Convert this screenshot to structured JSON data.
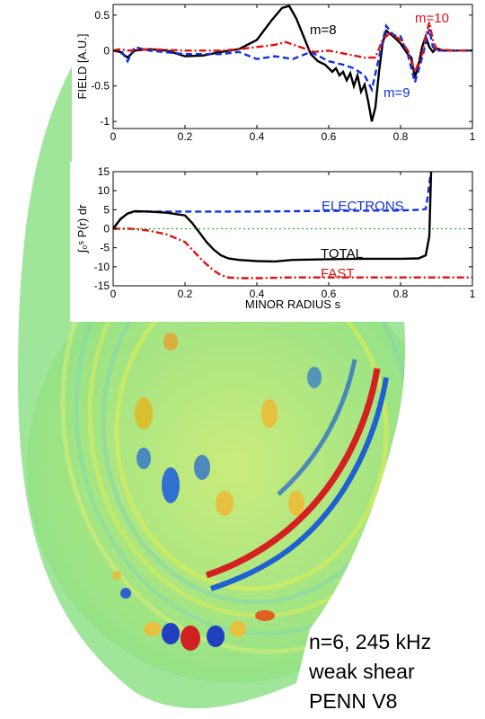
{
  "figure": {
    "caption_lines": [
      "n=6, 245 kHz",
      "weak shear",
      "PENN V8"
    ]
  },
  "chart_data": [
    {
      "type": "line",
      "title": "",
      "xlabel": "",
      "ylabel": "FIELD [A.U.]",
      "xlim": [
        0,
        1
      ],
      "ylim": [
        -1.1,
        0.65
      ],
      "xticks": [
        "0",
        "0.2",
        "0.4",
        "0.6",
        "0.8",
        "1"
      ],
      "yticks": [
        "0.5",
        "0",
        "-0.5",
        "-1"
      ],
      "grid": false,
      "series": [
        {
          "name": "m=8",
          "color": "#000000",
          "dash": "solid",
          "x": [
            0.0,
            0.02,
            0.04,
            0.06,
            0.1,
            0.15,
            0.2,
            0.25,
            0.3,
            0.35,
            0.4,
            0.44,
            0.47,
            0.49,
            0.51,
            0.53,
            0.55,
            0.57,
            0.59,
            0.61,
            0.62,
            0.63,
            0.64,
            0.65,
            0.66,
            0.67,
            0.68,
            0.69,
            0.7,
            0.71,
            0.72,
            0.73,
            0.74,
            0.75,
            0.76,
            0.78,
            0.8,
            0.82,
            0.83,
            0.84,
            0.85,
            0.86,
            0.87,
            0.88,
            0.89,
            0.9,
            0.92,
            0.95,
            1.0
          ],
          "y": [
            0.0,
            -0.02,
            -0.1,
            0.0,
            0.02,
            0.0,
            -0.08,
            -0.07,
            -0.02,
            0.02,
            0.15,
            0.42,
            0.6,
            0.63,
            0.45,
            0.2,
            -0.05,
            -0.15,
            -0.2,
            -0.3,
            -0.25,
            -0.35,
            -0.3,
            -0.42,
            -0.32,
            -0.5,
            -0.35,
            -0.58,
            -0.48,
            -0.72,
            -1.0,
            -0.8,
            -0.3,
            0.1,
            0.28,
            0.2,
            0.1,
            -0.05,
            -0.1,
            -0.38,
            -0.2,
            0.05,
            0.2,
            0.05,
            -0.02,
            0.03,
            0.0,
            0.0,
            0.0
          ]
        },
        {
          "name": "m=9",
          "color": "#1030e0",
          "dash": "dashed",
          "x": [
            0.0,
            0.02,
            0.04,
            0.06,
            0.1,
            0.2,
            0.3,
            0.35,
            0.4,
            0.45,
            0.5,
            0.55,
            0.6,
            0.64,
            0.67,
            0.7,
            0.72,
            0.74,
            0.76,
            0.78,
            0.8,
            0.82,
            0.84,
            0.86,
            0.87,
            0.88,
            0.89,
            0.9,
            0.95,
            1.0
          ],
          "y": [
            0.0,
            0.02,
            -0.15,
            0.05,
            0.0,
            -0.05,
            -0.05,
            -0.02,
            -0.12,
            -0.08,
            -0.12,
            -0.02,
            -0.15,
            -0.2,
            -0.25,
            -0.35,
            -0.55,
            -0.1,
            0.35,
            0.22,
            0.2,
            -0.05,
            -0.45,
            -0.1,
            0.1,
            0.3,
            0.05,
            0.0,
            0.0,
            0.0
          ]
        },
        {
          "name": "m=10",
          "color": "#e01010",
          "dash": "dashdot",
          "x": [
            0.0,
            0.02,
            0.04,
            0.1,
            0.2,
            0.3,
            0.35,
            0.4,
            0.45,
            0.48,
            0.52,
            0.56,
            0.6,
            0.65,
            0.7,
            0.73,
            0.75,
            0.77,
            0.8,
            0.82,
            0.84,
            0.86,
            0.87,
            0.88,
            0.89,
            0.9,
            0.95,
            1.0
          ],
          "y": [
            0.0,
            0.02,
            0.0,
            0.02,
            0.0,
            0.0,
            0.02,
            0.05,
            0.08,
            0.12,
            0.05,
            -0.02,
            0.0,
            -0.05,
            -0.1,
            -0.1,
            0.15,
            0.25,
            0.15,
            0.0,
            -0.3,
            -0.05,
            0.2,
            0.4,
            0.15,
            0.02,
            0.0,
            0.0
          ]
        }
      ],
      "annotations": [
        "m=8",
        "m=9",
        "m=10"
      ]
    },
    {
      "type": "line",
      "title": "",
      "xlabel": "MINOR RADIUS  s",
      "ylabel": "∫₀ˢ P(r) dr",
      "xlim": [
        0,
        1
      ],
      "ylim": [
        -15,
        15
      ],
      "xticks": [
        "0",
        "0.2",
        "0.4",
        "0.6",
        "0.8",
        "1"
      ],
      "yticks": [
        "15",
        "10",
        "5",
        "0",
        "-5",
        "-10",
        "-15"
      ],
      "grid": false,
      "series": [
        {
          "name": "ELECTRONS",
          "color": "#1030e0",
          "dash": "dashed",
          "x": [
            0.0,
            0.02,
            0.04,
            0.06,
            0.1,
            0.2,
            0.4,
            0.6,
            0.8,
            0.86,
            0.87,
            0.875,
            0.88,
            0.885
          ],
          "y": [
            0.0,
            2.5,
            4.0,
            4.5,
            4.5,
            4.5,
            4.5,
            4.7,
            4.8,
            5.0,
            5.2,
            8.0,
            12.0,
            15.0
          ]
        },
        {
          "name": "TOTAL",
          "color": "#000000",
          "dash": "solid",
          "x": [
            0.0,
            0.02,
            0.04,
            0.06,
            0.1,
            0.15,
            0.2,
            0.22,
            0.24,
            0.26,
            0.28,
            0.3,
            0.32,
            0.35,
            0.4,
            0.45,
            0.5,
            0.6,
            0.7,
            0.8,
            0.85,
            0.87,
            0.88,
            0.885
          ],
          "y": [
            0.0,
            2.5,
            4.0,
            4.6,
            4.5,
            4.2,
            3.5,
            1.5,
            -1.0,
            -3.5,
            -5.5,
            -7.0,
            -7.8,
            -8.2,
            -8.5,
            -8.6,
            -8.2,
            -8.0,
            -7.9,
            -7.9,
            -7.8,
            -7.0,
            -2.0,
            15.0
          ]
        },
        {
          "name": "FAST",
          "color": "#e01010",
          "dash": "dashdot",
          "x": [
            0.0,
            0.05,
            0.1,
            0.15,
            0.2,
            0.22,
            0.25,
            0.28,
            0.3,
            0.32,
            0.35,
            0.4,
            0.5,
            0.6,
            0.7,
            0.8,
            0.9,
            1.0
          ],
          "y": [
            0.0,
            0.0,
            -0.5,
            -1.5,
            -3.5,
            -5.5,
            -8.5,
            -11.0,
            -12.2,
            -12.8,
            -13.0,
            -13.0,
            -12.8,
            -12.8,
            -12.8,
            -12.8,
            -12.8,
            -12.8
          ]
        },
        {
          "name": "",
          "color": "#30b030",
          "dash": "dotted",
          "x": [
            0.0,
            1.0
          ],
          "y": [
            0.0,
            0.0
          ]
        }
      ],
      "annotations": [
        "ELECTRONS",
        "TOTAL",
        "FAST"
      ]
    }
  ]
}
